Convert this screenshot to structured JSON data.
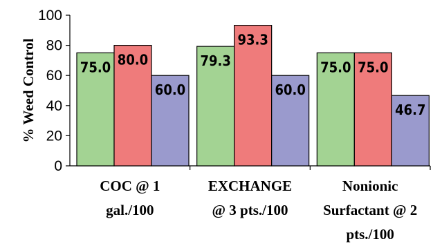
{
  "chart_data": {
    "type": "bar",
    "title": "",
    "xlabel": "",
    "ylabel": "% Weed Control",
    "ylim": [
      0,
      100
    ],
    "yticks": [
      "0",
      "20",
      "40",
      "60",
      "80",
      "100"
    ],
    "grid": false,
    "legend": "none",
    "categories": [
      [
        "COC @ 1",
        "gal./100"
      ],
      [
        "EXCHANGE",
        "@ 3 pts./100"
      ],
      [
        "Nonionic",
        "Surfactant @ 2",
        "pts./100"
      ]
    ],
    "series": [
      {
        "color": "#a3d393",
        "values": [
          75.0,
          79.3,
          75.0
        ],
        "labels": [
          "75.0",
          "79.3",
          "75.0"
        ]
      },
      {
        "color": "#ef7b7b",
        "values": [
          80.0,
          93.3,
          75.0
        ],
        "labels": [
          "80.0",
          "93.3",
          "75.0"
        ]
      },
      {
        "color": "#9a9acd",
        "values": [
          60.0,
          60.0,
          46.7
        ],
        "labels": [
          "60.0",
          "60.0",
          "46.7"
        ]
      }
    ]
  }
}
